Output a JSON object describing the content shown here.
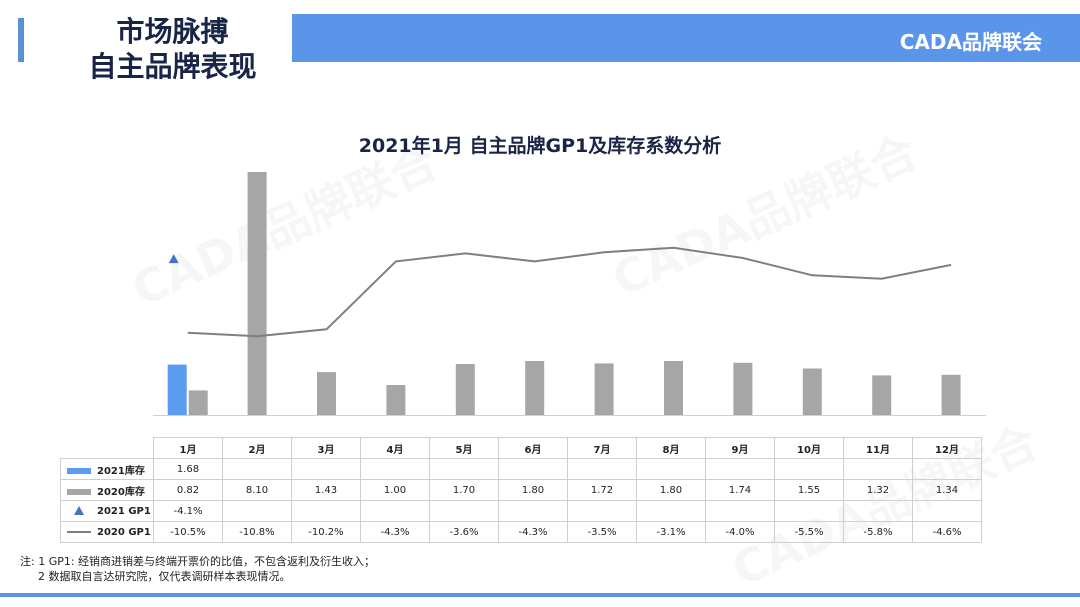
{
  "header": {
    "title_line1": "市场脉搏",
    "title_line2": "自主品牌表现",
    "brand": "CADA品牌联会"
  },
  "watermark": "CADA品牌联合",
  "colors": {
    "accent": "#5b95ea",
    "bar_2021": "#5b9bf0",
    "bar_2020": "#a6a6a6",
    "line_2020": "#7f7f7f",
    "marker_2021": "#4472c4"
  },
  "chart_data": {
    "type": "bar",
    "title": "2021年1月 自主品牌GP1及库存系数分析",
    "categories": [
      "1月",
      "2月",
      "3月",
      "4月",
      "5月",
      "6月",
      "7月",
      "8月",
      "9月",
      "10月",
      "11月",
      "12月"
    ],
    "series": [
      {
        "name": "2021库存",
        "kind": "bar",
        "axis": "left",
        "values": [
          1.68,
          null,
          null,
          null,
          null,
          null,
          null,
          null,
          null,
          null,
          null,
          null
        ],
        "labels": [
          "1.68",
          "",
          "",
          "",
          "",
          "",
          "",
          "",
          "",
          "",
          "",
          ""
        ]
      },
      {
        "name": "2020库存",
        "kind": "bar",
        "axis": "left",
        "values": [
          0.82,
          8.1,
          1.43,
          1.0,
          1.7,
          1.8,
          1.72,
          1.8,
          1.74,
          1.55,
          1.32,
          1.34
        ],
        "labels": [
          "0.82",
          "8.10",
          "1.43",
          "1.00",
          "1.70",
          "1.80",
          "1.72",
          "1.80",
          "1.74",
          "1.55",
          "1.32",
          "1.34"
        ]
      },
      {
        "name": "2021 GP1",
        "kind": "marker",
        "axis": "right",
        "values": [
          -4.1,
          null,
          null,
          null,
          null,
          null,
          null,
          null,
          null,
          null,
          null,
          null
        ],
        "labels": [
          "-4.1%",
          "",
          "",
          "",
          "",
          "",
          "",
          "",
          "",
          "",
          "",
          ""
        ]
      },
      {
        "name": "2020 GP1",
        "kind": "line",
        "axis": "right",
        "values": [
          -10.5,
          -10.8,
          -10.2,
          -4.3,
          -3.6,
          -4.3,
          -3.5,
          -3.1,
          -4.0,
          -5.5,
          -5.8,
          -4.6
        ],
        "labels": [
          "-10.5%",
          "-10.8%",
          "-10.2%",
          "-4.3%",
          "-3.6%",
          "-4.3%",
          "-3.5%",
          "-3.1%",
          "-4.0%",
          "-5.5%",
          "-5.8%",
          "-4.6%"
        ]
      }
    ],
    "legend": "data-table"
  },
  "notes": {
    "line1": "注: 1 GP1: 经销商进销差与终端开票价的比值，不包含返利及衍生收入；",
    "line2": "2 数据取自言达研究院，仅代表调研样本表现情况。"
  }
}
